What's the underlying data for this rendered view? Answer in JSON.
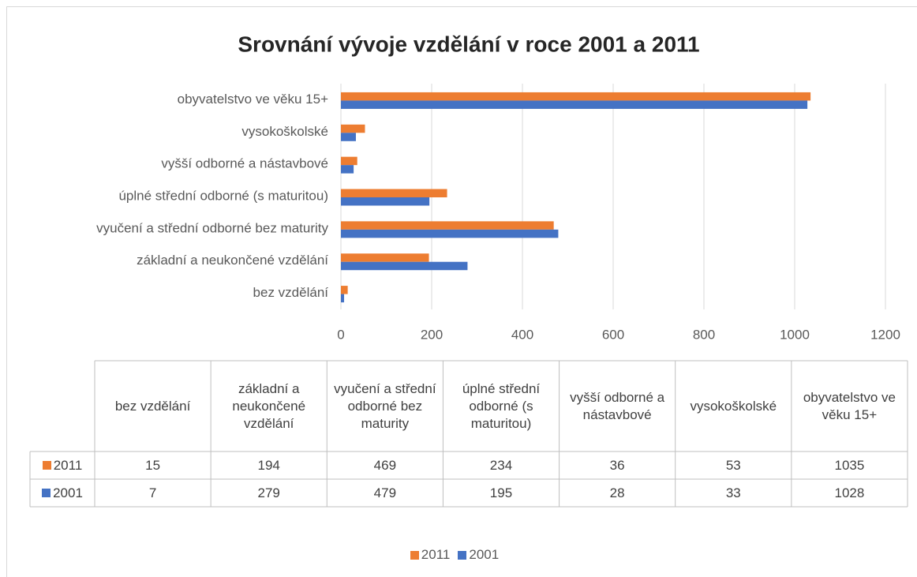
{
  "chart_data": {
    "type": "hbar",
    "title": "Srovnání vývoje vzdělání v roce 2001 a 2011",
    "categories": [
      "bez vzdělání",
      "základní a neukončené vzdělání",
      "vyučení a střední odborné bez maturity",
      "úplné střední odborné (s maturitou)",
      "vyšší odborné a nástavbové",
      "vysokoškolské",
      "obyvatelstvo ve věku 15+"
    ],
    "series": [
      {
        "name": "2011",
        "color": "#ed7d31",
        "values": [
          15,
          194,
          469,
          234,
          36,
          53,
          1035
        ]
      },
      {
        "name": "2001",
        "color": "#4472c4",
        "values": [
          7,
          279,
          479,
          195,
          28,
          33,
          1028
        ]
      }
    ],
    "xlim": [
      0,
      1200
    ],
    "xticks": [
      0,
      200,
      400,
      600,
      800,
      1000,
      1200
    ],
    "grid": true,
    "legend": "bottom",
    "data_table": true
  }
}
